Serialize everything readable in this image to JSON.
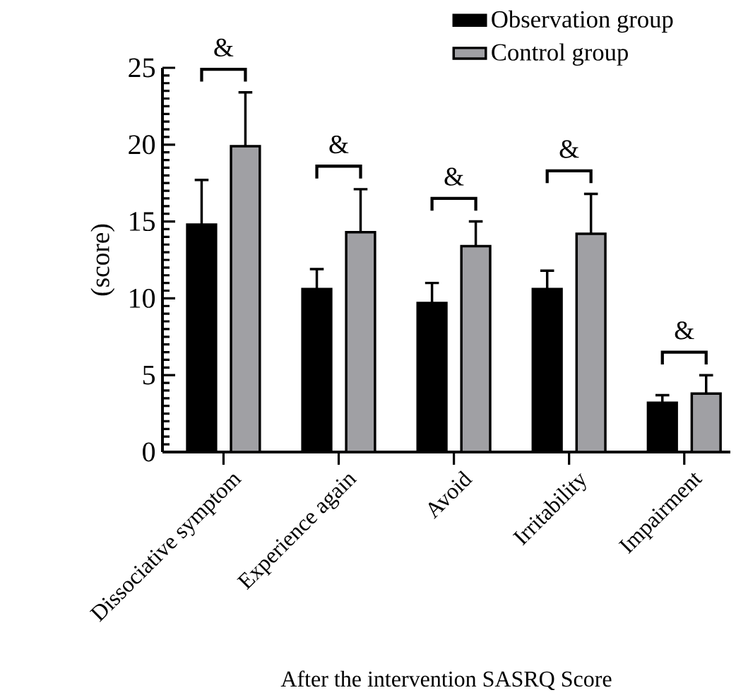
{
  "chart_data": {
    "type": "bar",
    "xlabel": "After the intervention SASRQ Score",
    "ylabel": "(score)",
    "categories": [
      "Dissociative symptom",
      "Experience again",
      "Avoid",
      "Irritability",
      "Impairment"
    ],
    "series": [
      {
        "name": "Observation group",
        "color": "#000000",
        "values": [
          14.8,
          10.6,
          9.7,
          10.6,
          3.2
        ],
        "errors": [
          [
            14.8,
            17.7
          ],
          [
            10.6,
            11.9
          ],
          [
            9.7,
            11.0
          ],
          [
            10.6,
            11.8
          ],
          [
            3.2,
            3.7
          ]
        ]
      },
      {
        "name": "Control group",
        "color": "#a0a0a4",
        "values": [
          19.9,
          14.3,
          13.4,
          14.2,
          3.8
        ],
        "errors": [
          [
            19.9,
            23.4
          ],
          [
            14.3,
            17.1
          ],
          [
            13.4,
            15.0
          ],
          [
            14.2,
            16.8
          ],
          [
            3.8,
            5.0
          ]
        ]
      }
    ],
    "annotations": [
      "&",
      "&",
      "&",
      "&",
      "&"
    ],
    "ylim": [
      0,
      25
    ],
    "yticks": [
      0,
      5,
      10,
      15,
      20,
      25
    ],
    "grid": false,
    "legend": "top right"
  }
}
